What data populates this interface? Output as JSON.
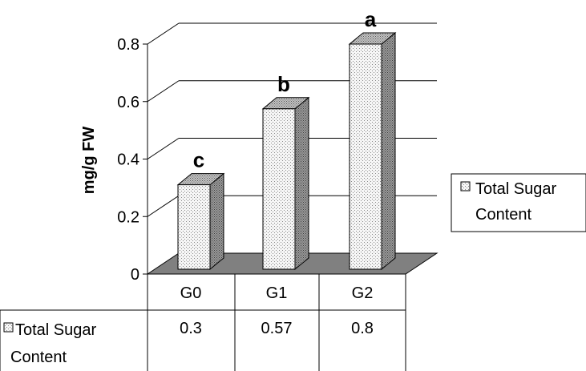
{
  "chart_data": {
    "type": "bar",
    "categories": [
      "G0",
      "G1",
      "G2"
    ],
    "series": [
      {
        "name": "Total Sugar Content",
        "values": [
          0.3,
          0.57,
          0.8
        ]
      }
    ],
    "ylabel": "mg/g FW",
    "ylim": [
      0,
      0.8
    ],
    "yticks": [
      "0",
      "0.2",
      "0.4",
      "0.6",
      "0.8"
    ],
    "significance_labels": [
      "c",
      "b",
      "a"
    ],
    "legend": {
      "position": "right",
      "line1": "Total Sugar",
      "line2": "Content"
    },
    "data_table": {
      "row_label_line1": "Total Sugar",
      "row_label_line2": "Content",
      "cells": [
        "0.3",
        "0.57",
        "0.8"
      ]
    },
    "grid": true,
    "colors": {
      "bar_front": "#f4f4f4",
      "bar_side": "#8c8c8c",
      "bar_top": "#b4b4b4",
      "floor": "#808080"
    }
  }
}
